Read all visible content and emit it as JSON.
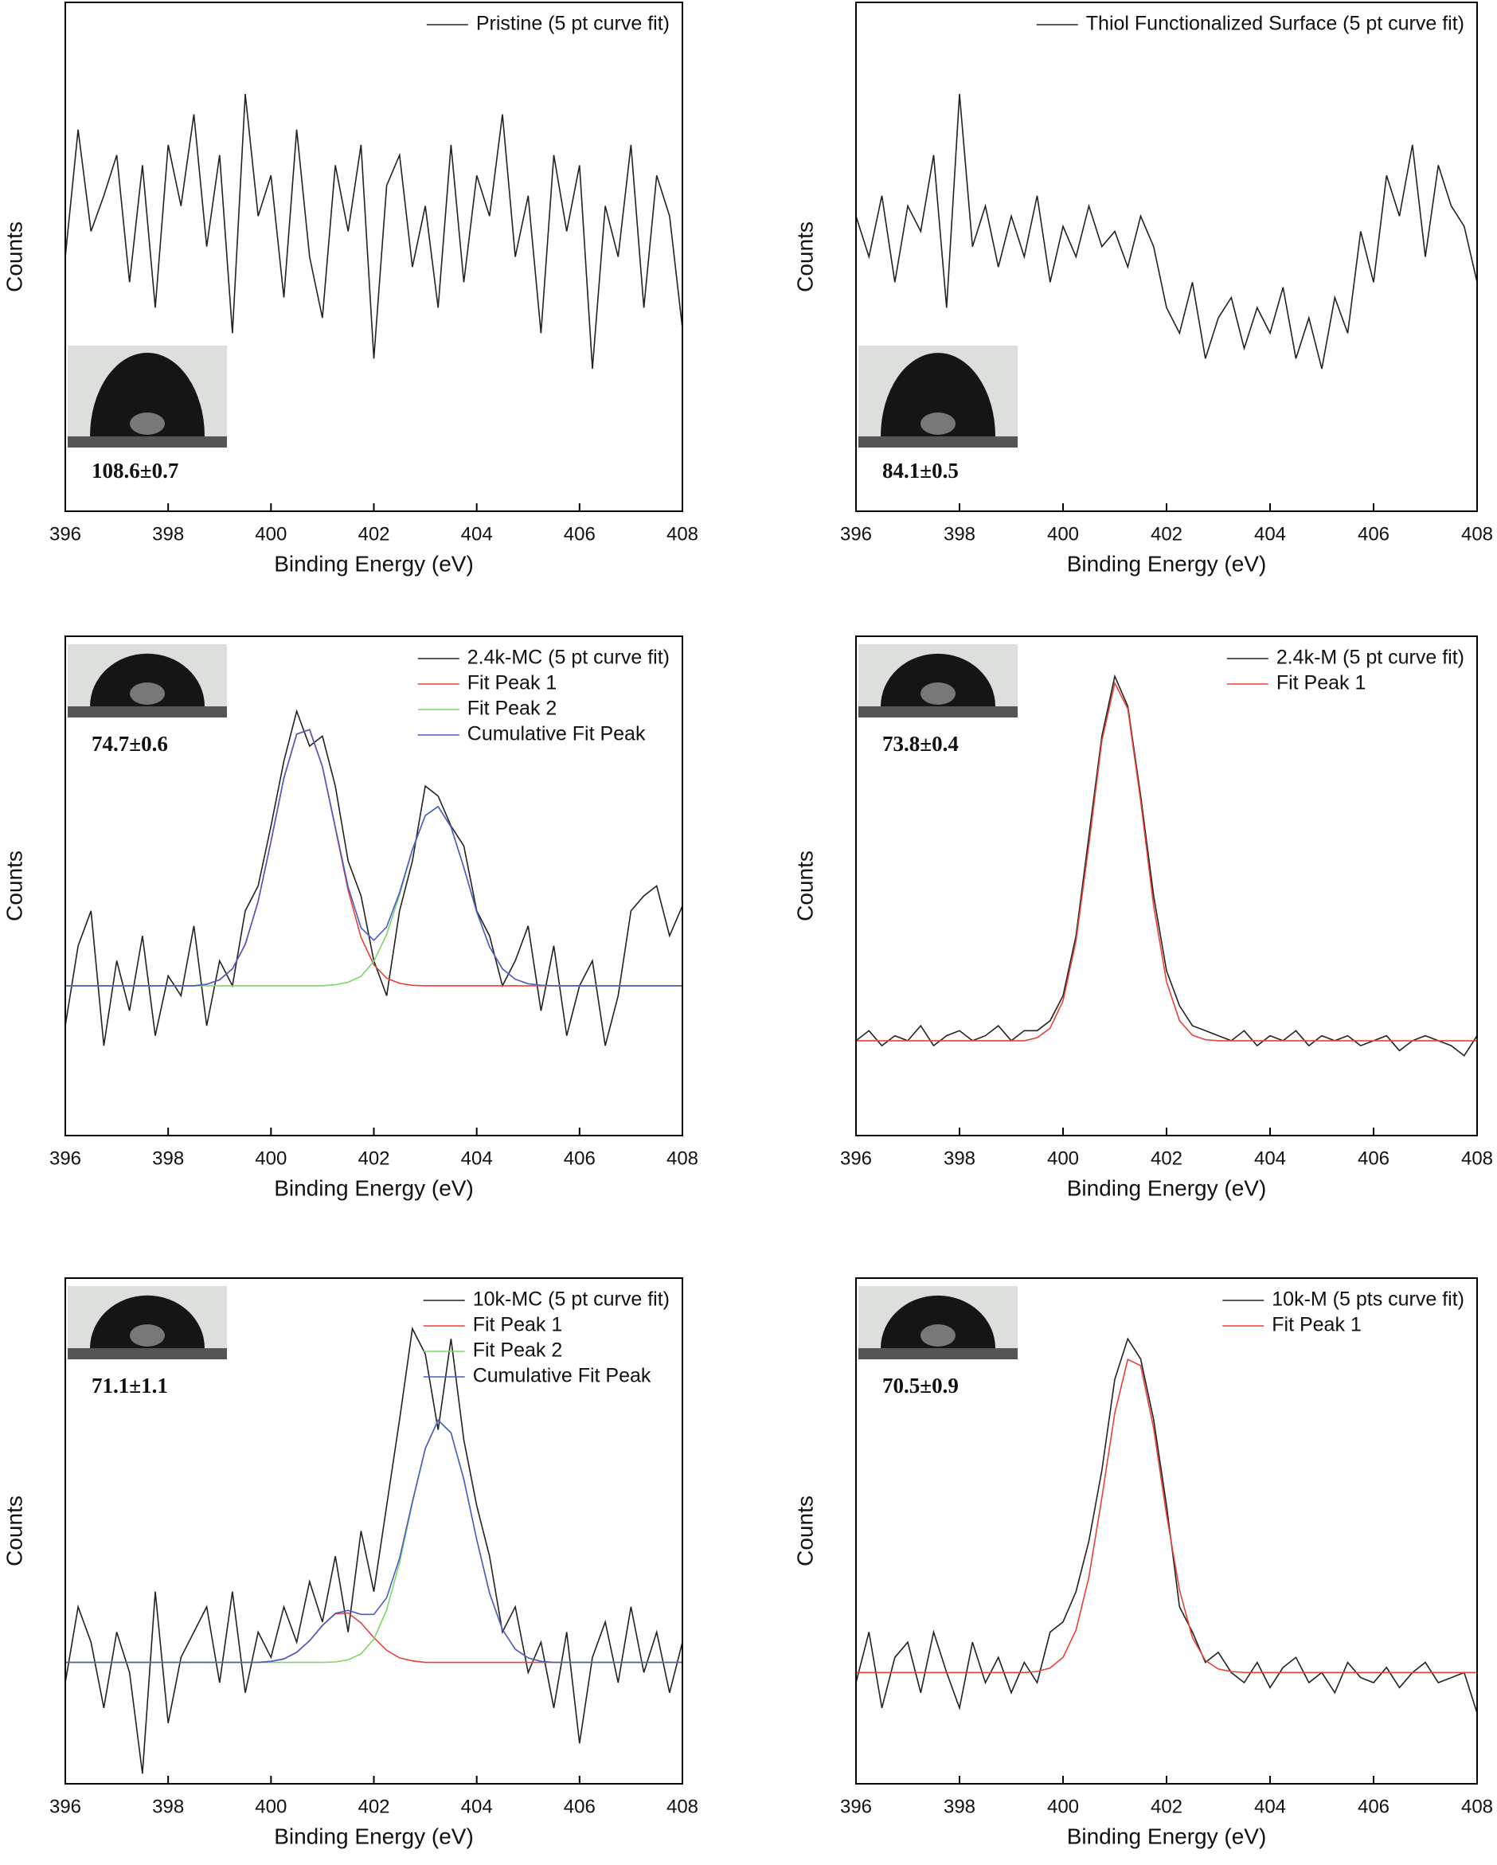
{
  "chart_data": [
    {
      "type": "line",
      "xlabel": "Binding Energy (eV)",
      "ylabel": "Counts",
      "annotation": "108.6±0.7",
      "legend": "upper right",
      "x": [
        396,
        396.25,
        396.5,
        396.75,
        397,
        397.25,
        397.5,
        397.75,
        398,
        398.25,
        398.5,
        398.75,
        399,
        399.25,
        399.5,
        399.75,
        400,
        400.25,
        400.5,
        400.75,
        401,
        401.25,
        401.5,
        401.75,
        402,
        402.25,
        402.5,
        402.75,
        403,
        403.25,
        403.5,
        403.75,
        404,
        404.25,
        404.5,
        404.75,
        405,
        405.25,
        405.5,
        405.75,
        406,
        406.25,
        406.5,
        406.75,
        407,
        407.25,
        407.5,
        407.75,
        408
      ],
      "xlim": [
        396,
        408
      ],
      "xticks": [
        396,
        398,
        400,
        402,
        404,
        406,
        408
      ],
      "ylim": [
        0,
        100
      ],
      "series": [
        {
          "name": "Pristine (5 pt curve fit)",
          "color": "#222222",
          "values": [
            50,
            75,
            55,
            62,
            70,
            45,
            68,
            40,
            72,
            60,
            78,
            52,
            70,
            35,
            82,
            58,
            66,
            42,
            75,
            50,
            38,
            68,
            55,
            72,
            30,
            64,
            70,
            48,
            60,
            40,
            72,
            45,
            66,
            58,
            78,
            50,
            62,
            35,
            70,
            55,
            68,
            28,
            60,
            50,
            72,
            40,
            66,
            58,
            36
          ]
        }
      ]
    },
    {
      "type": "line",
      "xlabel": "Binding Energy (eV)",
      "ylabel": "Counts",
      "annotation": "84.1±0.5",
      "legend": "upper right",
      "x": [
        396,
        396.25,
        396.5,
        396.75,
        397,
        397.25,
        397.5,
        397.75,
        398,
        398.25,
        398.5,
        398.75,
        399,
        399.25,
        399.5,
        399.75,
        400,
        400.25,
        400.5,
        400.75,
        401,
        401.25,
        401.5,
        401.75,
        402,
        402.25,
        402.5,
        402.75,
        403,
        403.25,
        403.5,
        403.75,
        404,
        404.25,
        404.5,
        404.75,
        405,
        405.25,
        405.5,
        405.75,
        406,
        406.25,
        406.5,
        406.75,
        407,
        407.25,
        407.5,
        407.75,
        408
      ],
      "xlim": [
        396,
        408
      ],
      "xticks": [
        396,
        398,
        400,
        402,
        404,
        406,
        408
      ],
      "ylim": [
        0,
        100
      ],
      "series": [
        {
          "name": "Thiol Functionalized Surface (5 pt curve fit)",
          "color": "#222222",
          "values": [
            58,
            50,
            62,
            45,
            60,
            55,
            70,
            40,
            82,
            52,
            60,
            48,
            58,
            50,
            62,
            45,
            56,
            50,
            60,
            52,
            55,
            48,
            58,
            52,
            40,
            35,
            45,
            30,
            38,
            42,
            32,
            40,
            35,
            44,
            30,
            38,
            28,
            42,
            35,
            55,
            45,
            66,
            58,
            72,
            50,
            68,
            60,
            56,
            45
          ]
        }
      ]
    },
    {
      "type": "line",
      "xlabel": "Binding Energy (eV)",
      "ylabel": "Counts",
      "annotation": "74.7±0.6",
      "legend": "upper right",
      "x": [
        396,
        396.25,
        396.5,
        396.75,
        397,
        397.25,
        397.5,
        397.75,
        398,
        398.25,
        398.5,
        398.75,
        399,
        399.25,
        399.5,
        399.75,
        400,
        400.25,
        400.5,
        400.75,
        401,
        401.25,
        401.5,
        401.75,
        402,
        402.25,
        402.5,
        402.75,
        403,
        403.25,
        403.5,
        403.75,
        404,
        404.25,
        404.5,
        404.75,
        405,
        405.25,
        405.5,
        405.75,
        406,
        406.25,
        406.5,
        406.75,
        407,
        407.25,
        407.5,
        407.75,
        408
      ],
      "xlim": [
        396,
        408
      ],
      "xticks": [
        396,
        398,
        400,
        402,
        404,
        406,
        408
      ],
      "ylim": [
        0,
        100
      ],
      "series": [
        {
          "name": "2.4k-MC (5 pt curve fit)",
          "color": "#222222",
          "values": [
            22,
            38,
            45,
            18,
            35,
            25,
            40,
            20,
            32,
            28,
            42,
            22,
            35,
            30,
            45,
            50,
            62,
            75,
            85,
            78,
            80,
            70,
            55,
            48,
            35,
            28,
            45,
            55,
            70,
            68,
            62,
            58,
            45,
            40,
            30,
            35,
            42,
            25,
            38,
            20,
            30,
            35,
            18,
            28,
            45,
            48,
            50,
            40,
            46
          ]
        },
        {
          "name": "Fit Peak 1",
          "color": "#e8413a",
          "values": [
            30,
            30,
            30,
            30,
            30,
            30,
            30,
            30,
            30,
            30,
            30,
            30.3,
            31.2,
            33.4,
            38.3,
            46.9,
            58.9,
            71.6,
            80.4,
            81.3,
            73.9,
            61.6,
            49.1,
            39.7,
            34.2,
            31.5,
            30.5,
            30.1,
            30,
            30,
            30,
            30,
            30,
            30,
            30,
            30,
            30,
            30,
            30,
            30,
            30,
            30,
            30,
            30,
            30,
            30,
            30,
            30,
            30
          ]
        },
        {
          "name": "Fit Peak 2",
          "color": "#7dd66a",
          "values": [
            30,
            30,
            30,
            30,
            30,
            30,
            30,
            30,
            30,
            30,
            30,
            30,
            30,
            30,
            30,
            30,
            30,
            30,
            30,
            30,
            30,
            30.2,
            30.7,
            31.9,
            34.9,
            40.3,
            48.2,
            57.2,
            64.1,
            65.9,
            61.8,
            53.7,
            44.8,
            37.8,
            33.4,
            31.3,
            30.4,
            30.1,
            30,
            30,
            30,
            30,
            30,
            30,
            30,
            30,
            30,
            30,
            30
          ]
        },
        {
          "name": "Cumulative Fit Peak",
          "color": "#4a5cc4",
          "values": [
            30,
            30,
            30,
            30,
            30,
            30,
            30,
            30,
            30,
            30,
            30,
            30.3,
            31.2,
            33.4,
            38.3,
            46.9,
            58.9,
            71.6,
            80.4,
            81.3,
            73.9,
            61.8,
            49.8,
            41.6,
            39.1,
            41.8,
            48.7,
            57.3,
            64.1,
            65.9,
            61.8,
            53.7,
            44.8,
            37.8,
            33.4,
            31.3,
            30.4,
            30.1,
            30,
            30,
            30,
            30,
            30,
            30,
            30,
            30,
            30,
            30,
            30
          ]
        }
      ]
    },
    {
      "type": "line",
      "xlabel": "Binding Energy (eV)",
      "ylabel": "Counts",
      "annotation": "73.8±0.4",
      "legend": "upper right",
      "x": [
        396,
        396.25,
        396.5,
        396.75,
        397,
        397.25,
        397.5,
        397.75,
        398,
        398.25,
        398.5,
        398.75,
        399,
        399.25,
        399.5,
        399.75,
        400,
        400.25,
        400.5,
        400.75,
        401,
        401.25,
        401.5,
        401.75,
        402,
        402.25,
        402.5,
        402.75,
        403,
        403.25,
        403.5,
        403.75,
        404,
        404.25,
        404.5,
        404.75,
        405,
        405.25,
        405.5,
        405.75,
        406,
        406.25,
        406.5,
        406.75,
        407,
        407.25,
        407.5,
        407.75,
        408
      ],
      "xlim": [
        396,
        408
      ],
      "xticks": [
        396,
        398,
        400,
        402,
        404,
        406,
        408
      ],
      "ylim": [
        0,
        100
      ],
      "series": [
        {
          "name": "2.4k-M (5 pt curve fit)",
          "color": "#222222",
          "values": [
            19,
            21,
            18,
            20,
            19,
            22,
            18,
            20,
            21,
            19,
            20,
            22,
            19,
            21,
            21,
            23,
            28,
            40,
            60,
            80,
            92,
            86,
            68,
            48,
            33,
            26,
            22,
            21,
            20,
            19,
            21,
            18,
            20,
            19,
            21,
            18,
            20,
            19,
            20,
            18,
            19,
            20,
            17,
            19,
            20,
            19,
            18,
            16,
            20
          ]
        },
        {
          "name": "Fit Peak 1",
          "color": "#e8413a",
          "values": [
            19,
            19,
            19,
            19,
            19,
            19,
            19,
            19,
            19,
            19,
            19,
            19,
            19,
            19,
            19.6,
            21.5,
            27,
            39,
            58.3,
            79.1,
            90.6,
            85.5,
            67,
            46,
            30.8,
            23,
            20.1,
            19.2,
            19,
            19,
            19,
            19,
            19,
            19,
            19,
            19,
            19,
            19,
            19,
            19,
            19,
            19,
            19,
            19,
            19,
            19,
            19,
            19,
            19
          ]
        }
      ]
    },
    {
      "type": "line",
      "xlabel": "Binding Energy (eV)",
      "ylabel": "Counts",
      "annotation": "71.1±1.1",
      "legend": "upper right",
      "x": [
        396,
        396.25,
        396.5,
        396.75,
        397,
        397.25,
        397.5,
        397.75,
        398,
        398.25,
        398.5,
        398.75,
        399,
        399.25,
        399.5,
        399.75,
        400,
        400.25,
        400.5,
        400.75,
        401,
        401.25,
        401.5,
        401.75,
        402,
        402.25,
        402.5,
        402.75,
        403,
        403.25,
        403.5,
        403.75,
        404,
        404.25,
        404.5,
        404.75,
        405,
        405.25,
        405.5,
        405.75,
        406,
        406.25,
        406.5,
        406.75,
        407,
        407.25,
        407.5,
        407.75,
        408
      ],
      "xlim": [
        396,
        408
      ],
      "xticks": [
        396,
        398,
        400,
        402,
        404,
        406,
        408
      ],
      "ylim": [
        0,
        100
      ],
      "series": [
        {
          "name": "10k-MC (5 pt curve fit)",
          "color": "#222222",
          "values": [
            20,
            35,
            28,
            15,
            30,
            22,
            2,
            38,
            12,
            25,
            30,
            35,
            20,
            38,
            18,
            30,
            25,
            35,
            28,
            40,
            32,
            45,
            30,
            50,
            38,
            55,
            72,
            90,
            85,
            70,
            88,
            68,
            55,
            45,
            30,
            35,
            22,
            28,
            15,
            30,
            8,
            25,
            32,
            20,
            35,
            22,
            30,
            18,
            28
          ]
        },
        {
          "name": "Fit Peak 1",
          "color": "#e8413a",
          "values": [
            24,
            24,
            24,
            24,
            24,
            24,
            24,
            24,
            24,
            24,
            24,
            24,
            24,
            24,
            24,
            24,
            24.2,
            24.7,
            26,
            28.3,
            31.3,
            33.6,
            33.8,
            31.8,
            28.9,
            26.4,
            24.9,
            24.3,
            24,
            24,
            24,
            24,
            24,
            24,
            24,
            24,
            24,
            24,
            24,
            24,
            24,
            24,
            24,
            24,
            24,
            24,
            24,
            24,
            24
          ]
        },
        {
          "name": "Fit Peak 2",
          "color": "#7dd66a",
          "values": [
            24,
            24,
            24,
            24,
            24,
            24,
            24,
            24,
            24,
            24,
            24,
            24,
            24,
            24,
            24,
            24,
            24,
            24,
            24,
            24,
            24,
            24.1,
            24.5,
            25.7,
            28.6,
            34.4,
            43.7,
            55.5,
            66.3,
            71.9,
            69.4,
            60.2,
            48.3,
            37.7,
            30.5,
            26.6,
            24.9,
            24.2,
            24,
            24,
            24,
            24,
            24,
            24,
            24,
            24,
            24,
            24,
            24
          ]
        },
        {
          "name": "Cumulative Fit Peak",
          "color": "#4a5cc4",
          "values": [
            24,
            24,
            24,
            24,
            24,
            24,
            24,
            24,
            24,
            24,
            24,
            24,
            24,
            24,
            24,
            24,
            24.2,
            24.7,
            26,
            28.3,
            31.3,
            33.7,
            34.3,
            33.5,
            33.5,
            36.8,
            44.6,
            55.8,
            66.3,
            71.9,
            69.4,
            60.2,
            48.3,
            37.7,
            30.5,
            26.6,
            24.9,
            24.2,
            24,
            24,
            24,
            24,
            24,
            24,
            24,
            24,
            24,
            24,
            24
          ]
        }
      ]
    },
    {
      "type": "line",
      "xlabel": "Binding Energy (eV)",
      "ylabel": "Counts",
      "annotation": "70.5±0.9",
      "legend": "upper right",
      "x": [
        396,
        396.25,
        396.5,
        396.75,
        397,
        397.25,
        397.5,
        397.75,
        398,
        398.25,
        398.5,
        398.75,
        399,
        399.25,
        399.5,
        399.75,
        400,
        400.25,
        400.5,
        400.75,
        401,
        401.25,
        401.5,
        401.75,
        402,
        402.25,
        402.5,
        402.75,
        403,
        403.25,
        403.5,
        403.75,
        404,
        404.25,
        404.5,
        404.75,
        405,
        405.25,
        405.5,
        405.75,
        406,
        406.25,
        406.5,
        406.75,
        407,
        407.25,
        407.5,
        407.75,
        408
      ],
      "xlim": [
        396,
        408
      ],
      "xticks": [
        396,
        398,
        400,
        402,
        404,
        406,
        408
      ],
      "ylim": [
        0,
        100
      ],
      "series": [
        {
          "name": "10k-M (5 pts curve fit)",
          "color": "#222222",
          "values": [
            20,
            30,
            15,
            25,
            28,
            18,
            30,
            22,
            15,
            28,
            20,
            25,
            18,
            24,
            20,
            30,
            32,
            38,
            48,
            62,
            80,
            88,
            84,
            72,
            55,
            35,
            30,
            24,
            26,
            22,
            20,
            24,
            19,
            23,
            25,
            20,
            22,
            18,
            24,
            21,
            20,
            23,
            19,
            22,
            24,
            20,
            21,
            22,
            14
          ]
        },
        {
          "name": "Fit Peak 1",
          "color": "#e8413a",
          "values": [
            22,
            22,
            22,
            22,
            22,
            22,
            22,
            22,
            22,
            22,
            22,
            22,
            22,
            22,
            22.2,
            22.9,
            25,
            30.4,
            40.9,
            56.6,
            73.3,
            83.9,
            82.7,
            70.3,
            53.2,
            38.3,
            28.9,
            24.4,
            22.7,
            22.2,
            22,
            22,
            22,
            22,
            22,
            22,
            22,
            22,
            22,
            22,
            22,
            22,
            22,
            22,
            22,
            22,
            22,
            22,
            22
          ]
        }
      ]
    }
  ]
}
